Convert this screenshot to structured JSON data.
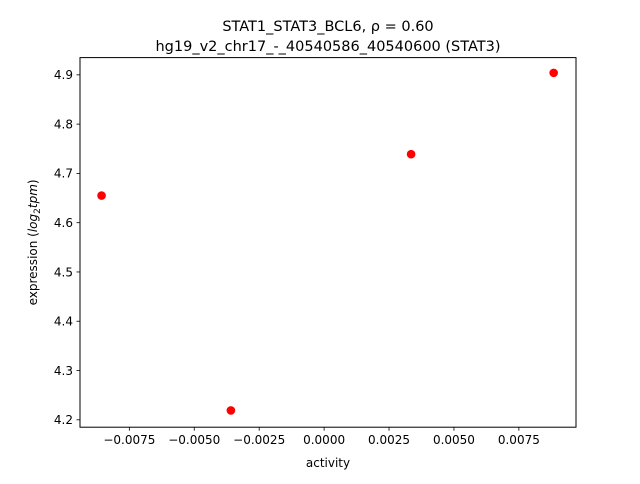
{
  "chart_data": {
    "type": "scatter",
    "title_line1": "STAT1_STAT3_BCL6, ρ = 0.60",
    "title_line2": "hg19_v2_chr17_-_40540586_40540600 (STAT3)",
    "xlabel": "activity",
    "ylabel_prefix": "expression (",
    "ylabel_math": "log",
    "ylabel_sub": "2",
    "ylabel_math2": "tpm",
    "ylabel_suffix": ")",
    "xlim": [
      -0.0094,
      0.0097
    ],
    "ylim": [
      4.185,
      4.935
    ],
    "xticks": [
      -0.0075,
      -0.005,
      -0.0025,
      0.0,
      0.0025,
      0.005,
      0.0075
    ],
    "xtick_labels": [
      "−0.0075",
      "−0.0050",
      "−0.0025",
      "0.0000",
      "0.0025",
      "0.0050",
      "0.0075"
    ],
    "yticks": [
      4.2,
      4.3,
      4.4,
      4.5,
      4.6,
      4.7,
      4.8,
      4.9
    ],
    "ytick_labels": [
      "4.2",
      "4.3",
      "4.4",
      "4.5",
      "4.6",
      "4.7",
      "4.8",
      "4.9"
    ],
    "x": [
      -0.00857,
      -0.00359,
      0.00335,
      0.00884
    ],
    "y": [
      4.655,
      4.219,
      4.739,
      4.904
    ],
    "marker_color": "#ff0000",
    "grid": false
  }
}
